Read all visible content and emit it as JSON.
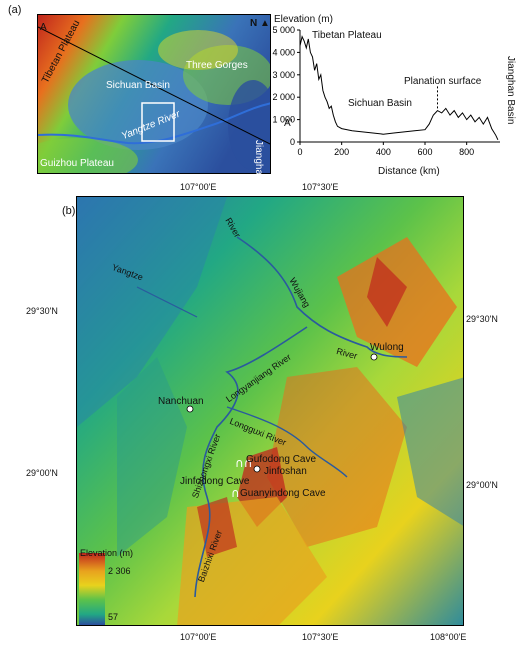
{
  "panel_a": {
    "label": "(a)",
    "places": {
      "tibetan_plateau": "Tibetan Plateau",
      "sichuan_basin": "Sichuan Basin",
      "three_gorges": "Three Gorges",
      "jianghan_basin": "Jianghan Basin",
      "guizhou_plateau": "Guizhou Plateau",
      "yangtze_river": "Yangtze River"
    },
    "profile_start": "A",
    "profile_end": "A'",
    "north": "N"
  },
  "profile": {
    "ylabel": "Elevation (m)",
    "xlabel": "Distance (km)",
    "y_ticks": [
      "5 000",
      "4 000",
      "3 000",
      "2 000",
      "1 000",
      "0"
    ],
    "x_ticks": [
      "0",
      "200",
      "400",
      "600",
      "800"
    ],
    "annotations": {
      "tibetan_plateau": "Tibetan Plateau",
      "sichuan_basin": "Sichuan Basin",
      "planation_surface": "Planation surface",
      "jianghan_basin": "Jianghan Basin",
      "a_prime": "A'"
    }
  },
  "chart_data": {
    "type": "line",
    "xlabel": "Distance (km)",
    "ylabel": "Elevation (m)",
    "xlim": [
      0,
      960
    ],
    "ylim": [
      0,
      5000
    ],
    "x": [
      0,
      10,
      20,
      30,
      40,
      50,
      60,
      70,
      80,
      90,
      100,
      110,
      120,
      130,
      140,
      150,
      160,
      170,
      180,
      200,
      250,
      300,
      350,
      400,
      450,
      500,
      550,
      600,
      620,
      640,
      660,
      680,
      700,
      720,
      740,
      760,
      780,
      800,
      820,
      840,
      860,
      880,
      900,
      920,
      940,
      950
    ],
    "y": [
      4300,
      4700,
      4500,
      4200,
      4600,
      4000,
      3800,
      3200,
      3500,
      2800,
      3000,
      2300,
      2000,
      1800,
      1500,
      1600,
      1200,
      900,
      700,
      600,
      500,
      450,
      400,
      350,
      400,
      450,
      500,
      550,
      800,
      1200,
      1400,
      1300,
      1500,
      1200,
      1400,
      1100,
      1300,
      1000,
      1200,
      900,
      1100,
      800,
      1100,
      600,
      300,
      100
    ]
  },
  "panel_b": {
    "label": "(b)",
    "top_ticks": [
      "107°00'E",
      "107°30'E"
    ],
    "bottom_ticks": [
      "107°00'E",
      "107°30'E",
      "108°00'E"
    ],
    "left_ticks": [
      "29°30'N",
      "29°00'N"
    ],
    "right_ticks": [
      "29°30'N",
      "29°00'N"
    ],
    "places": {
      "nanchuan": "Nanchuan",
      "wulong": "Wulong",
      "jinfoshan": "Jinfoshan",
      "gufodong": "Gufodong Cave",
      "jinfodong": "Jinfodong Cave",
      "guanyindong": "Guanyindong Cave"
    },
    "rivers": {
      "river_top": "River",
      "yangtze": "Yangtze",
      "wujiang": "Wujiang",
      "river_wu": "River",
      "longyanjiang": "Longyanjiang River",
      "longguxi": "Longguxi River",
      "shizhongxi": "Shizhongxi River",
      "baizhixi": "Baizhixi River"
    },
    "legend": {
      "title": "Elevation (m)",
      "max": "2 306",
      "min": "57"
    }
  },
  "colors": {
    "low": "#2b4f9e",
    "mid_low": "#22a884",
    "mid": "#7fcd3a",
    "mid_high": "#f2e01d",
    "high": "#e8701e",
    "peak": "#c0261d"
  }
}
